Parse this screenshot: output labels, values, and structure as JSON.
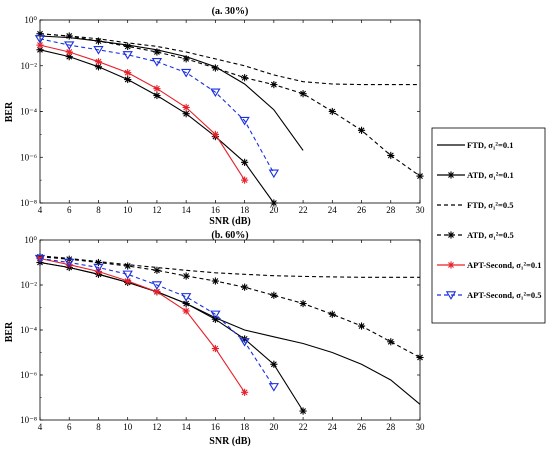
{
  "colors": {
    "black": "#000000",
    "red": "#e8202a",
    "blue": "#1a2fe0"
  },
  "legend": [
    {
      "label": "FTD, σ₁²=0.1",
      "color": "#000000",
      "dash": "solid",
      "marker": "none"
    },
    {
      "label": "ATD, σ₁²=0.1",
      "color": "#000000",
      "dash": "solid",
      "marker": "asterisk"
    },
    {
      "label": "FTD, σ₁²=0.5",
      "color": "#000000",
      "dash": "dashed",
      "marker": "none"
    },
    {
      "label": "ATD, σ₁²=0.5",
      "color": "#000000",
      "dash": "dashed",
      "marker": "asterisk"
    },
    {
      "label": "APT-Second, σ₁²=0.1",
      "color": "#e8202a",
      "dash": "solid",
      "marker": "asterisk"
    },
    {
      "label": "APT-Second, σ₁²=0.5",
      "color": "#1a2fe0",
      "dash": "dashed",
      "marker": "triangle-down"
    }
  ],
  "chart_data": [
    {
      "type": "line",
      "title": "(a. 30%)",
      "xlabel": "SNR (dB)",
      "ylabel": "BER",
      "x_scale": "linear",
      "y_scale": "log",
      "xlim": [
        4,
        30
      ],
      "ylim": [
        1e-08,
        1
      ],
      "xticks": [
        4,
        6,
        8,
        10,
        12,
        14,
        16,
        18,
        20,
        22,
        24,
        26,
        28,
        30
      ],
      "xtick_labels": [
        "4",
        "6",
        "8",
        "10",
        "12",
        "14",
        "16",
        "18",
        "20",
        "22",
        "24",
        "26",
        "28",
        "30"
      ],
      "yticks": [
        1e-08,
        1e-06,
        0.0001,
        0.01,
        1
      ],
      "ytick_labels": [
        "10⁻⁸",
        "10⁻⁶",
        "10⁻⁴",
        "10⁻²",
        "10⁰"
      ],
      "series": [
        {
          "name": "FTD, σ₁²=0.1",
          "x": [
            4,
            6,
            8,
            10,
            12,
            14,
            16,
            18,
            20,
            22
          ],
          "y": [
            0.2,
            0.17,
            0.12,
            0.08,
            0.05,
            0.025,
            0.009,
            0.0016,
            0.00012,
            2e-06
          ]
        },
        {
          "name": "ATD, σ₁²=0.1",
          "x": [
            4,
            6,
            8,
            10,
            12,
            14,
            16,
            18,
            20
          ],
          "y": [
            0.05,
            0.025,
            0.009,
            0.0025,
            0.0005,
            8e-05,
            8e-06,
            6e-07,
            1e-08
          ]
        },
        {
          "name": "FTD, σ₁²=0.5",
          "x": [
            4,
            6,
            8,
            10,
            12,
            14,
            16,
            18,
            20,
            22,
            24,
            26,
            28,
            30
          ],
          "y": [
            0.25,
            0.2,
            0.15,
            0.1,
            0.07,
            0.04,
            0.02,
            0.01,
            0.004,
            0.002,
            0.0016,
            0.0015,
            0.0015,
            0.0015
          ]
        },
        {
          "name": "ATD, σ₁²=0.5",
          "x": [
            4,
            6,
            8,
            10,
            12,
            14,
            16,
            18,
            20,
            22,
            24,
            26,
            28,
            30
          ],
          "y": [
            0.25,
            0.2,
            0.12,
            0.07,
            0.04,
            0.02,
            0.008,
            0.003,
            0.0015,
            0.0006,
            0.0001,
            1.5e-05,
            1.2e-06,
            1.5e-07
          ]
        },
        {
          "name": "APT-Second, σ₁²=0.1",
          "x": [
            4,
            6,
            8,
            10,
            12,
            14,
            16,
            18
          ],
          "y": [
            0.08,
            0.04,
            0.015,
            0.005,
            0.001,
            0.00015,
            1e-05,
            1e-07
          ]
        },
        {
          "name": "APT-Second, σ₁²=0.5",
          "x": [
            4,
            6,
            8,
            10,
            12,
            14,
            16,
            18,
            20
          ],
          "y": [
            0.15,
            0.08,
            0.05,
            0.03,
            0.015,
            0.005,
            0.0007,
            4e-05,
            2e-07
          ]
        }
      ]
    },
    {
      "type": "line",
      "title": "(b. 60%)",
      "xlabel": "SNR (dB)",
      "ylabel": "BER",
      "x_scale": "linear",
      "y_scale": "log",
      "xlim": [
        4,
        30
      ],
      "ylim": [
        1e-08,
        1
      ],
      "xticks": [
        4,
        6,
        8,
        10,
        12,
        14,
        16,
        18,
        20,
        22,
        24,
        26,
        28,
        30
      ],
      "xtick_labels": [
        "4",
        "6",
        "8",
        "10",
        "12",
        "14",
        "16",
        "18",
        "20",
        "22",
        "24",
        "26",
        "28",
        "30"
      ],
      "yticks": [
        1e-08,
        1e-06,
        0.0001,
        0.01,
        1
      ],
      "ytick_labels": [
        "10⁻⁸",
        "10⁻⁶",
        "10⁻⁴",
        "10⁻²",
        "10⁰"
      ],
      "series": [
        {
          "name": "FTD, σ₁²=0.1",
          "x": [
            4,
            6,
            8,
            10,
            12,
            14,
            16,
            18,
            20,
            22,
            24,
            26,
            28,
            30
          ],
          "y": [
            0.1,
            0.06,
            0.03,
            0.013,
            0.005,
            0.0015,
            0.00035,
            0.0001,
            5e-05,
            2.5e-05,
            1e-05,
            3e-06,
            6e-07,
            5e-08
          ]
        },
        {
          "name": "ATD, σ₁²=0.1",
          "x": [
            4,
            6,
            8,
            10,
            12,
            14,
            16,
            18,
            20,
            22
          ],
          "y": [
            0.1,
            0.06,
            0.03,
            0.013,
            0.005,
            0.0015,
            0.0003,
            4e-05,
            3e-06,
            2.5e-08
          ]
        },
        {
          "name": "FTD, σ₁²=0.5",
          "x": [
            4,
            6,
            8,
            10,
            12,
            14,
            16,
            18,
            20,
            22,
            24,
            26,
            28,
            30
          ],
          "y": [
            0.2,
            0.15,
            0.11,
            0.08,
            0.06,
            0.045,
            0.035,
            0.03,
            0.026,
            0.024,
            0.023,
            0.022,
            0.022,
            0.022
          ]
        },
        {
          "name": "ATD, σ₁²=0.5",
          "x": [
            4,
            6,
            8,
            10,
            12,
            14,
            16,
            18,
            20,
            22,
            24,
            26,
            28,
            30
          ],
          "y": [
            0.18,
            0.14,
            0.1,
            0.07,
            0.045,
            0.025,
            0.015,
            0.008,
            0.0035,
            0.0015,
            0.0005,
            0.00015,
            3e-05,
            6e-06
          ]
        },
        {
          "name": "APT-Second, σ₁²=0.1",
          "x": [
            4,
            6,
            8,
            10,
            12,
            14,
            16,
            18
          ],
          "y": [
            0.15,
            0.08,
            0.04,
            0.015,
            0.005,
            0.0007,
            1.5e-05,
            1.7e-07
          ]
        },
        {
          "name": "APT-Second, σ₁²=0.5",
          "x": [
            4,
            6,
            8,
            10,
            12,
            14,
            16,
            18,
            20
          ],
          "y": [
            0.15,
            0.1,
            0.06,
            0.03,
            0.01,
            0.003,
            0.0005,
            3e-05,
            3e-07
          ]
        }
      ]
    }
  ]
}
